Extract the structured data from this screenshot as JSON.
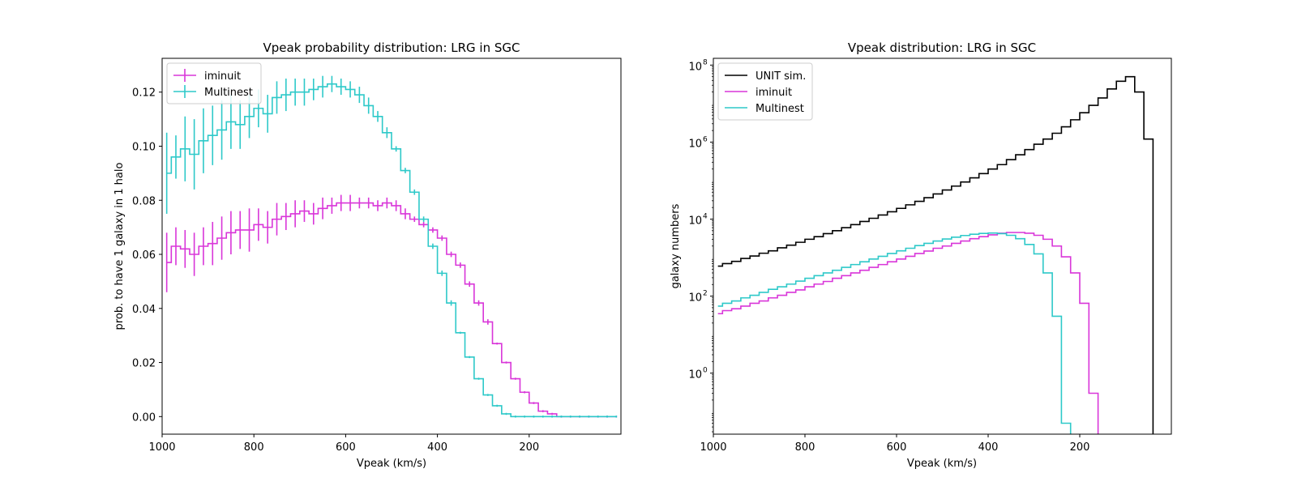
{
  "charts": [
    {
      "title": "Vpeak probability distribution: LRG in SGC",
      "xlabel": "Vpeak (km/s)",
      "ylabel": "prob. to have 1 galaxy in 1 halo",
      "xticks": [
        "1000",
        "800",
        "600",
        "400",
        "200"
      ],
      "yticks": [
        "0.00",
        "0.02",
        "0.04",
        "0.06",
        "0.08",
        "0.10",
        "0.12"
      ],
      "legend": [
        "iminuit",
        "Multinest"
      ]
    },
    {
      "title": "Vpeak distribution: LRG in SGC",
      "xlabel": "Vpeak (km/s)",
      "ylabel": "galaxy numbers",
      "xticks": [
        "1000",
        "800",
        "600",
        "400",
        "200"
      ],
      "yticks_exp": [
        "0",
        "2",
        "4",
        "6",
        "8"
      ],
      "legend": [
        "UNIT sim.",
        "iminuit",
        "Multinest"
      ]
    }
  ],
  "chart_data": [
    {
      "type": "line",
      "drawstyle": "steps",
      "title": "Vpeak probability distribution: LRG in SGC",
      "xlabel": "Vpeak (km/s)",
      "ylabel": "prob. to have 1 galaxy in 1 halo",
      "xlim": [
        1000,
        0
      ],
      "ylim": [
        -0.0065,
        0.1325
      ],
      "grid": false,
      "legend_position": "upper-left",
      "x": [
        990,
        970,
        950,
        930,
        910,
        890,
        870,
        850,
        830,
        810,
        790,
        770,
        750,
        730,
        710,
        690,
        670,
        650,
        630,
        610,
        590,
        570,
        550,
        530,
        510,
        490,
        470,
        450,
        430,
        410,
        390,
        370,
        350,
        330,
        310,
        290,
        270,
        250,
        230,
        210,
        190,
        170,
        150,
        130,
        110,
        90,
        70,
        50,
        30,
        10
      ],
      "series": [
        {
          "name": "iminuit",
          "color": "#d936d9",
          "values": [
            0.057,
            0.063,
            0.062,
            0.06,
            0.063,
            0.064,
            0.066,
            0.068,
            0.069,
            0.069,
            0.071,
            0.07,
            0.073,
            0.074,
            0.075,
            0.076,
            0.075,
            0.077,
            0.078,
            0.079,
            0.079,
            0.079,
            0.079,
            0.078,
            0.079,
            0.078,
            0.075,
            0.073,
            0.071,
            0.069,
            0.066,
            0.06,
            0.056,
            0.049,
            0.042,
            0.035,
            0.027,
            0.02,
            0.014,
            0.009,
            0.005,
            0.002,
            0.001,
            0,
            0,
            0,
            0,
            0,
            0,
            0
          ],
          "errors": [
            0.011,
            0.007,
            0.007,
            0.008,
            0.007,
            0.008,
            0.008,
            0.008,
            0.007,
            0.008,
            0.006,
            0.006,
            0.006,
            0.005,
            0.005,
            0.004,
            0.004,
            0.004,
            0.003,
            0.003,
            0.003,
            0.002,
            0.002,
            0.002,
            0.002,
            0.002,
            0.002,
            0.001,
            0.001,
            0.001,
            0.001,
            0.001,
            0.001,
            0.001,
            0.001,
            0.001,
            0,
            0,
            0,
            0,
            0,
            0,
            0,
            0,
            0,
            0,
            0,
            0,
            0,
            0
          ]
        },
        {
          "name": "Multinest",
          "color": "#2ec9c9",
          "values": [
            0.09,
            0.096,
            0.099,
            0.097,
            0.102,
            0.104,
            0.106,
            0.109,
            0.108,
            0.111,
            0.114,
            0.112,
            0.118,
            0.119,
            0.12,
            0.12,
            0.121,
            0.122,
            0.123,
            0.122,
            0.121,
            0.119,
            0.115,
            0.111,
            0.105,
            0.099,
            0.091,
            0.083,
            0.073,
            0.063,
            0.053,
            0.042,
            0.031,
            0.022,
            0.014,
            0.008,
            0.004,
            0.001,
            0,
            0,
            0,
            0,
            0,
            0,
            0,
            0,
            0,
            0,
            0,
            0
          ],
          "errors": [
            0.015,
            0.008,
            0.012,
            0.013,
            0.012,
            0.011,
            0.011,
            0.01,
            0.009,
            0.008,
            0.007,
            0.007,
            0.006,
            0.006,
            0.005,
            0.005,
            0.004,
            0.004,
            0.003,
            0.003,
            0.003,
            0.003,
            0.003,
            0.002,
            0.002,
            0.001,
            0.001,
            0.001,
            0.001,
            0.001,
            0.001,
            0.001,
            0,
            0,
            0,
            0,
            0,
            0,
            0,
            0,
            0,
            0,
            0,
            0,
            0,
            0,
            0,
            0,
            0,
            0
          ]
        }
      ]
    },
    {
      "type": "line",
      "drawstyle": "steps",
      "title": "Vpeak distribution: LRG in SGC",
      "xlabel": "Vpeak (km/s)",
      "ylabel": "galaxy numbers",
      "xlim": [
        1000,
        0
      ],
      "ylim": [
        0.026,
        150000000
      ],
      "yscale": "log",
      "grid": false,
      "legend_position": "upper-left",
      "x": [
        990,
        970,
        950,
        930,
        910,
        890,
        870,
        850,
        830,
        810,
        790,
        770,
        750,
        730,
        710,
        690,
        670,
        650,
        630,
        610,
        590,
        570,
        550,
        530,
        510,
        490,
        470,
        450,
        430,
        410,
        390,
        370,
        350,
        330,
        310,
        290,
        270,
        250,
        230,
        210,
        190,
        170,
        150,
        130,
        110,
        90,
        70,
        50,
        30,
        10
      ],
      "series": [
        {
          "name": "UNIT sim.",
          "color": "#000000",
          "values": [
            600,
            700,
            800,
            950,
            1100,
            1300,
            1500,
            1800,
            2100,
            2500,
            3000,
            3500,
            4200,
            5000,
            6000,
            7200,
            8700,
            10500,
            12800,
            15500,
            19000,
            23500,
            29000,
            36000,
            45000,
            57000,
            72000,
            92000,
            118000,
            152000,
            200000,
            260000,
            350000,
            470000,
            640000,
            880000,
            1200000,
            1700000,
            2500000,
            3800000,
            5800000,
            9000000,
            14000000,
            24000000,
            38000000,
            50000000,
            20000000,
            1200000,
            0,
            0
          ]
        },
        {
          "name": "iminuit",
          "color": "#d936d9",
          "values": [
            35,
            42,
            47,
            55,
            65,
            75,
            90,
            105,
            125,
            145,
            175,
            205,
            240,
            290,
            340,
            400,
            470,
            560,
            660,
            780,
            920,
            1080,
            1280,
            1480,
            1750,
            2000,
            2350,
            2700,
            3100,
            3500,
            3900,
            4300,
            4500,
            4500,
            4300,
            3800,
            3000,
            2000,
            1050,
            400,
            65,
            0.3,
            0,
            0,
            0,
            0,
            0,
            0,
            0,
            0
          ]
        },
        {
          "name": "Multinest",
          "color": "#2ec9c9",
          "values": [
            55,
            65,
            75,
            90,
            105,
            125,
            150,
            175,
            205,
            245,
            290,
            340,
            400,
            470,
            560,
            660,
            780,
            920,
            1080,
            1280,
            1500,
            1750,
            2050,
            2350,
            2700,
            3050,
            3400,
            3750,
            4050,
            4250,
            4350,
            4200,
            3800,
            3100,
            2200,
            1250,
            400,
            30,
            0.05,
            0,
            0,
            0,
            0,
            0,
            0,
            0,
            0,
            0,
            0,
            0
          ]
        }
      ]
    }
  ]
}
